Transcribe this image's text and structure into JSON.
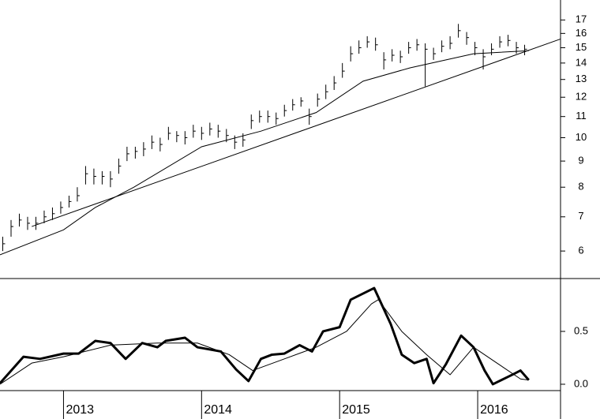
{
  "chart_data": [
    {
      "type": "ohlc",
      "log": true,
      "color": "#000000",
      "xlim": [
        2012.54,
        2016.6
      ],
      "ylim": [
        5.3,
        18.6
      ],
      "yticks": [
        6,
        7,
        8,
        9,
        10,
        11,
        12,
        13,
        14,
        15,
        16,
        17
      ],
      "x": [
        2012.56,
        2012.62,
        2012.68,
        2012.74,
        2012.8,
        2012.86,
        2012.92,
        2012.98,
        2013.04,
        2013.1,
        2013.16,
        2013.22,
        2013.28,
        2013.34,
        2013.4,
        2013.46,
        2013.52,
        2013.58,
        2013.64,
        2013.7,
        2013.76,
        2013.82,
        2013.88,
        2013.94,
        2014.0,
        2014.06,
        2014.12,
        2014.18,
        2014.24,
        2014.3,
        2014.36,
        2014.42,
        2014.48,
        2014.54,
        2014.6,
        2014.66,
        2014.72,
        2014.78,
        2014.84,
        2014.9,
        2014.96,
        2015.02,
        2015.08,
        2015.14,
        2015.2,
        2015.26,
        2015.32,
        2015.38,
        2015.44,
        2015.5,
        2015.56,
        2015.62,
        2015.68,
        2015.74,
        2015.8,
        2015.86,
        2015.92,
        2015.98,
        2016.04,
        2016.1,
        2016.16,
        2016.22,
        2016.28,
        2016.34
      ],
      "high": [
        6.4,
        6.9,
        7.1,
        7.0,
        7.0,
        7.2,
        7.3,
        7.5,
        7.7,
        8.0,
        8.8,
        8.7,
        8.6,
        8.6,
        9.1,
        9.6,
        9.6,
        9.8,
        10.1,
        10.0,
        10.5,
        10.3,
        10.3,
        10.6,
        10.5,
        10.7,
        10.6,
        10.4,
        10.1,
        10.2,
        11.1,
        11.3,
        11.3,
        11.2,
        11.6,
        11.9,
        12.0,
        11.4,
        12.2,
        12.7,
        13.2,
        14.0,
        15.1,
        15.5,
        15.8,
        15.7,
        14.7,
        14.9,
        14.8,
        15.4,
        15.6,
        15.3,
        15.0,
        15.5,
        15.8,
        16.7,
        16.1,
        15.4,
        14.9,
        15.3,
        15.8,
        15.9,
        15.4,
        15.2
      ],
      "low": [
        6.0,
        6.4,
        6.7,
        6.6,
        6.6,
        6.8,
        6.9,
        7.1,
        7.3,
        7.5,
        8.1,
        8.1,
        8.1,
        8.0,
        8.5,
        9.0,
        9.1,
        9.2,
        9.5,
        9.4,
        9.9,
        9.8,
        9.7,
        10.0,
        9.9,
        10.1,
        10.0,
        9.8,
        9.5,
        9.6,
        10.4,
        10.7,
        10.7,
        10.6,
        11.0,
        11.3,
        11.5,
        10.6,
        11.5,
        11.9,
        12.4,
        13.1,
        14.1,
        14.6,
        15.0,
        14.8,
        13.6,
        14.1,
        14.0,
        14.6,
        14.8,
        12.6,
        14.2,
        14.7,
        14.9,
        15.7,
        15.2,
        14.5,
        13.6,
        14.5,
        15.0,
        15.1,
        14.6,
        14.5
      ],
      "close": [
        6.2,
        6.7,
        6.9,
        6.8,
        6.8,
        7.0,
        7.1,
        7.3,
        7.5,
        7.7,
        8.5,
        8.4,
        8.4,
        8.3,
        8.8,
        9.3,
        9.4,
        9.5,
        9.8,
        9.7,
        10.2,
        10.1,
        10.0,
        10.3,
        10.2,
        10.4,
        10.3,
        10.1,
        9.8,
        9.9,
        10.8,
        11.0,
        11.0,
        10.9,
        11.3,
        11.6,
        11.8,
        11.0,
        11.9,
        12.3,
        12.8,
        13.5,
        14.6,
        15.0,
        15.4,
        15.2,
        14.2,
        14.5,
        14.4,
        15.0,
        15.2,
        14.9,
        14.6,
        15.1,
        15.3,
        16.2,
        15.7,
        15.0,
        14.4,
        14.9,
        15.4,
        15.5,
        15.0,
        14.9
      ],
      "lines": [
        {
          "color": "#000000",
          "width": 1,
          "x": [
            2012.54,
            2013.0,
            2013.23,
            2013.51,
            2014.0,
            2014.43,
            2014.83,
            2015.17,
            2015.51,
            2015.97,
            2016.37
          ],
          "values": [
            5.9,
            6.6,
            7.3,
            8.0,
            9.6,
            10.3,
            11.2,
            12.9,
            13.7,
            14.6,
            14.8
          ]
        },
        {
          "color": "#000000",
          "width": 1,
          "x": [
            2012.77,
            2016.6
          ],
          "values": [
            6.7,
            15.6
          ]
        }
      ]
    },
    {
      "type": "line",
      "xlim": [
        2012.54,
        2016.6
      ],
      "ylim": [
        -0.06,
        1.0
      ],
      "yticks": [
        {
          "value": 0,
          "label": "0.0"
        },
        0.5
      ],
      "xticks": [
        2013,
        2014,
        2015,
        2016
      ],
      "series": [
        {
          "color": "#000000",
          "width": 3,
          "x": [
            2012.54,
            2012.71,
            2012.83,
            2013.0,
            2013.11,
            2013.23,
            2013.34,
            2013.45,
            2013.57,
            2013.68,
            2013.74,
            2013.88,
            2013.97,
            2014.14,
            2014.25,
            2014.34,
            2014.43,
            2014.51,
            2014.6,
            2014.71,
            2014.8,
            2014.88,
            2015.0,
            2015.08,
            2015.25,
            2015.37,
            2015.45,
            2015.54,
            2015.63,
            2015.68,
            2015.77,
            2015.88,
            2015.97,
            2016.05,
            2016.11,
            2016.25,
            2016.31,
            2016.37
          ],
          "values": [
            0.01,
            0.26,
            0.24,
            0.29,
            0.29,
            0.41,
            0.39,
            0.24,
            0.39,
            0.35,
            0.41,
            0.44,
            0.35,
            0.31,
            0.14,
            0.03,
            0.24,
            0.28,
            0.29,
            0.37,
            0.31,
            0.5,
            0.54,
            0.8,
            0.91,
            0.57,
            0.28,
            0.2,
            0.24,
            0.01,
            0.19,
            0.46,
            0.35,
            0.13,
            0.0,
            0.09,
            0.13,
            0.04
          ]
        },
        {
          "color": "#000000",
          "width": 1,
          "x": [
            2012.54,
            2012.77,
            2013.0,
            2013.34,
            2013.68,
            2013.97,
            2014.2,
            2014.37,
            2014.6,
            2014.83,
            2015.05,
            2015.23,
            2015.28,
            2015.45,
            2015.63,
            2015.8,
            2015.97,
            2016.14,
            2016.31,
            2016.37
          ],
          "values": [
            0.0,
            0.2,
            0.26,
            0.37,
            0.39,
            0.39,
            0.28,
            0.13,
            0.24,
            0.35,
            0.5,
            0.76,
            0.8,
            0.5,
            0.28,
            0.09,
            0.35,
            0.2,
            0.05,
            0.04
          ]
        }
      ]
    }
  ]
}
